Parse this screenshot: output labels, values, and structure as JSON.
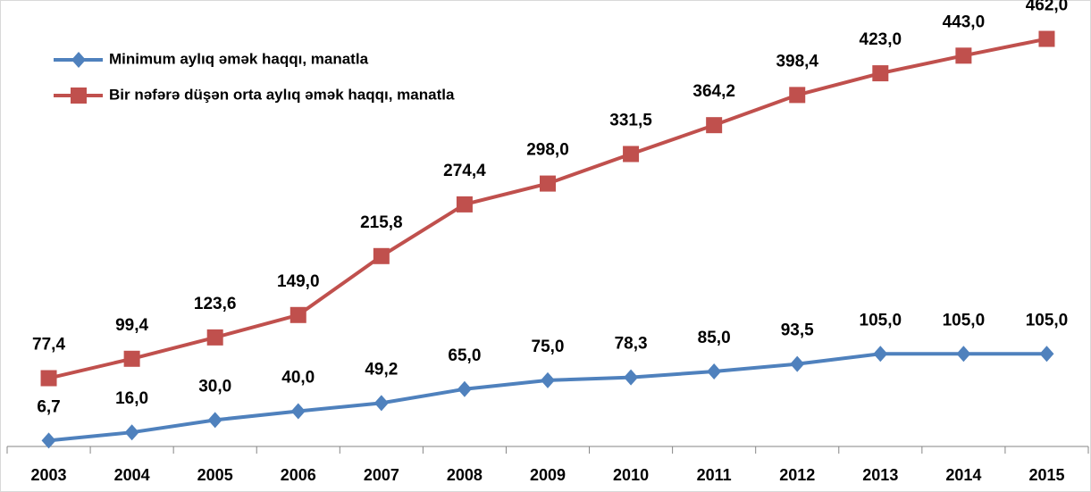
{
  "chart_data": {
    "type": "line",
    "categories": [
      "2003",
      "2004",
      "2005",
      "2006",
      "2007",
      "2008",
      "2009",
      "2010",
      "2011",
      "2012",
      "2013",
      "2014",
      "2015"
    ],
    "series": [
      {
        "name": "Minimum aylıq əmək haqqı, manatla",
        "color": "#4f81bd",
        "marker": "diamond",
        "values": [
          6.7,
          16.0,
          30.0,
          40.0,
          49.2,
          65.0,
          75.0,
          78.3,
          85.0,
          93.5,
          105.0,
          105.0,
          105.0
        ],
        "value_labels": [
          "6,7",
          "16,0",
          "30,0",
          "40,0",
          "49,2",
          "65,0",
          "75,0",
          "78,3",
          "85,0",
          "93,5",
          "105,0",
          "105,0",
          "105,0"
        ]
      },
      {
        "name": "Bir nəfərə düşən orta aylıq əmək haqqı, manatla",
        "color": "#c0504d",
        "marker": "square",
        "values": [
          77.4,
          99.4,
          123.6,
          149.0,
          215.8,
          274.4,
          298.0,
          331.5,
          364.2,
          398.4,
          423.0,
          443.0,
          462.0
        ],
        "value_labels": [
          "77,4",
          "99,4",
          "123,6",
          "149,0",
          "215,8",
          "274,4",
          "298,0",
          "331,5",
          "364,2",
          "398,4",
          "423,0",
          "443,0",
          "462,0"
        ]
      }
    ],
    "ylim": [
      0,
      500
    ],
    "legend": "upper left"
  }
}
